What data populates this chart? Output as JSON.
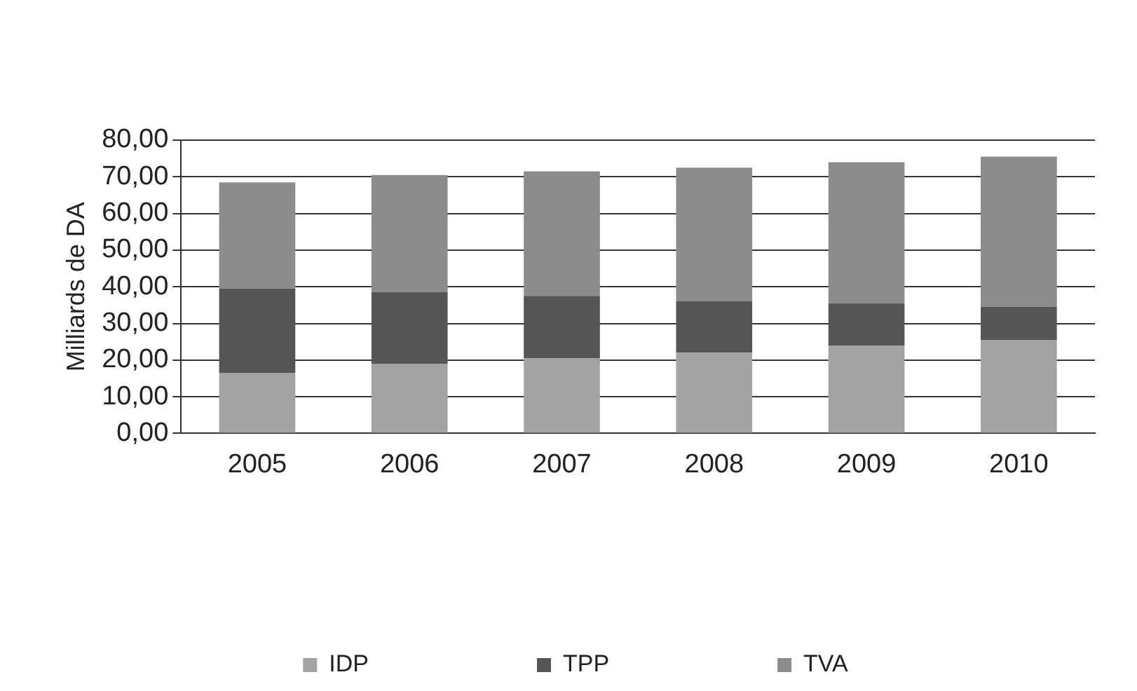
{
  "chart_data": {
    "type": "bar",
    "stacked": true,
    "ylabel": "Milliards de DA",
    "categories": [
      "2005",
      "2006",
      "2007",
      "2008",
      "2009",
      "2010"
    ],
    "series": [
      {
        "name": "IDP",
        "color": "#a3a3a3",
        "values": [
          16.5,
          19,
          20.5,
          22,
          24,
          25.5
        ]
      },
      {
        "name": "TPP",
        "color": "#555555",
        "values": [
          23,
          19.5,
          17,
          14,
          11.5,
          9
        ]
      },
      {
        "name": "TVA",
        "color": "#8c8c8c",
        "values": [
          29,
          32,
          34,
          36.5,
          38.5,
          41
        ]
      }
    ],
    "ylim": [
      0,
      80
    ],
    "yticks": [
      {
        "value": 0,
        "label": "0,00"
      },
      {
        "value": 10,
        "label": "10,00"
      },
      {
        "value": 20,
        "label": "20,00"
      },
      {
        "value": 30,
        "label": "30,00"
      },
      {
        "value": 40,
        "label": "40,00"
      },
      {
        "value": 50,
        "label": "50,00"
      },
      {
        "value": 60,
        "label": "60,00"
      },
      {
        "value": 70,
        "label": "70,00"
      },
      {
        "value": 80,
        "label": "80,00"
      }
    ],
    "grid": "y",
    "legend": "bottom"
  }
}
